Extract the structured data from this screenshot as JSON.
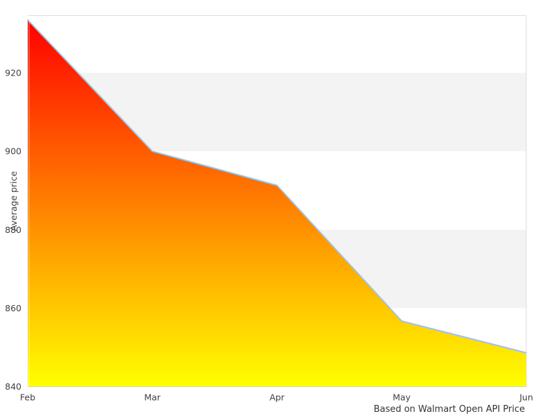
{
  "chart_data": {
    "type": "area",
    "title": "",
    "x_categories": [
      "Feb",
      "Mar",
      "Apr",
      "May",
      "Jun"
    ],
    "series": [
      {
        "name": "Average price",
        "values": [
          933.5,
          900.0,
          891.3,
          856.7,
          848.6
        ]
      }
    ],
    "xlabel": "",
    "ylabel": "Average price",
    "ylim": [
      840,
      934.6
    ],
    "yticks": [
      840,
      860,
      880,
      900,
      920
    ],
    "grid_bands": [
      {
        "from": 900,
        "to": 920
      },
      {
        "from": 860,
        "to": 880
      }
    ],
    "legend_position": "none",
    "caption": "Based on Walmart Open API Price",
    "colors": {
      "gradient_top": "#ff0000",
      "gradient_bottom": "#ffff00",
      "line": "#a4c2da",
      "band": "#f3f3f3",
      "plot_border": "#dddddd",
      "axis_line": "#cccccc",
      "tick_text": "#404040",
      "caption_text": "#333333",
      "background": "#ffffff",
      "left_edge_highlight": "rgba(255,255,255,0.55)"
    }
  }
}
